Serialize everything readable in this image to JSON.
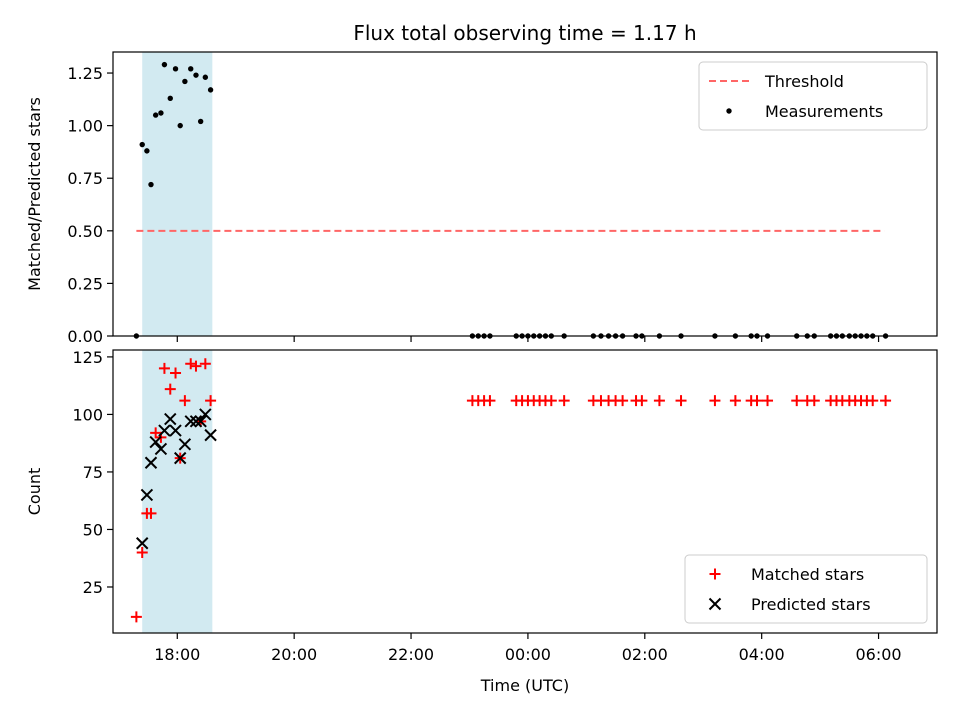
{
  "figure": {
    "title": "Flux total observing time = 1.17 h",
    "xlabel": "Time (UTC)"
  },
  "colors": {
    "shade": "#add8e6",
    "threshold": "#ff6666",
    "measurement": "#000000",
    "matched": "#ff0000",
    "predicted": "#000000",
    "axes": "#000000"
  },
  "chart_data": [
    {
      "type": "scatter",
      "title": "Flux total observing time = 1.17 h",
      "xlabel": "",
      "ylabel": "Matched/Predicted stars",
      "x_unit": "hours since 00:00 UTC (negative = previous evening)",
      "xlim": [
        -7.1,
        7.0
      ],
      "ylim": [
        0.0,
        1.35
      ],
      "x_ticks": [
        -6,
        -4,
        -2,
        0,
        2,
        4,
        6
      ],
      "x_tick_labels": [
        "18:00",
        "20:00",
        "22:00",
        "00:00",
        "02:00",
        "04:00",
        "06:00"
      ],
      "y_ticks": [
        0.0,
        0.25,
        0.5,
        0.75,
        1.0,
        1.25
      ],
      "y_tick_labels": [
        "0.00",
        "0.25",
        "0.50",
        "0.75",
        "1.00",
        "1.25"
      ],
      "shaded_x_range": [
        -6.6,
        -5.4
      ],
      "legend": {
        "position": "top-right"
      },
      "threshold": {
        "name": "Threshold",
        "x": [
          -6.7,
          6.1
        ],
        "y": 0.5,
        "style": "dashed"
      },
      "series": [
        {
          "name": "Measurements",
          "marker": "dot",
          "points": [
            [
              -6.7,
              0.0
            ],
            [
              -6.6,
              0.91
            ],
            [
              -6.52,
              0.88
            ],
            [
              -6.45,
              0.72
            ],
            [
              -6.37,
              1.05
            ],
            [
              -6.28,
              1.06
            ],
            [
              -6.22,
              1.29
            ],
            [
              -6.12,
              1.13
            ],
            [
              -6.03,
              1.27
            ],
            [
              -5.95,
              1.0
            ],
            [
              -5.87,
              1.21
            ],
            [
              -5.77,
              1.27
            ],
            [
              -5.68,
              1.24
            ],
            [
              -5.6,
              1.02
            ],
            [
              -5.52,
              1.23
            ],
            [
              -5.43,
              1.17
            ],
            [
              -0.95,
              0.0
            ],
            [
              -0.85,
              0.0
            ],
            [
              -0.75,
              0.0
            ],
            [
              -0.65,
              0.0
            ],
            [
              -0.2,
              0.0
            ],
            [
              -0.1,
              0.0
            ],
            [
              0.0,
              0.0
            ],
            [
              0.1,
              0.0
            ],
            [
              0.2,
              0.0
            ],
            [
              0.3,
              0.0
            ],
            [
              0.4,
              0.0
            ],
            [
              0.62,
              0.0
            ],
            [
              1.12,
              0.0
            ],
            [
              1.25,
              0.0
            ],
            [
              1.38,
              0.0
            ],
            [
              1.5,
              0.0
            ],
            [
              1.62,
              0.0
            ],
            [
              1.85,
              0.0
            ],
            [
              1.95,
              0.0
            ],
            [
              2.25,
              0.0
            ],
            [
              2.62,
              0.0
            ],
            [
              3.2,
              0.0
            ],
            [
              3.55,
              0.0
            ],
            [
              3.82,
              0.0
            ],
            [
              3.92,
              0.0
            ],
            [
              4.1,
              0.0
            ],
            [
              4.6,
              0.0
            ],
            [
              4.78,
              0.0
            ],
            [
              4.9,
              0.0
            ],
            [
              5.18,
              0.0
            ],
            [
              5.28,
              0.0
            ],
            [
              5.38,
              0.0
            ],
            [
              5.5,
              0.0
            ],
            [
              5.6,
              0.0
            ],
            [
              5.7,
              0.0
            ],
            [
              5.8,
              0.0
            ],
            [
              5.9,
              0.0
            ],
            [
              6.12,
              0.0
            ]
          ]
        }
      ]
    },
    {
      "type": "scatter",
      "title": "",
      "xlabel": "Time (UTC)",
      "ylabel": "Count",
      "x_unit": "hours since 00:00 UTC (negative = previous evening)",
      "xlim": [
        -7.1,
        7.0
      ],
      "ylim": [
        5,
        128
      ],
      "x_ticks": [
        -6,
        -4,
        -2,
        0,
        2,
        4,
        6
      ],
      "x_tick_labels": [
        "18:00",
        "20:00",
        "22:00",
        "00:00",
        "02:00",
        "04:00",
        "06:00"
      ],
      "y_ticks": [
        25,
        50,
        75,
        100,
        125
      ],
      "y_tick_labels": [
        "25",
        "50",
        "75",
        "100",
        "125"
      ],
      "shaded_x_range": [
        -6.6,
        -5.4
      ],
      "legend": {
        "position": "bottom-right"
      },
      "series": [
        {
          "name": "Matched stars",
          "marker": "plus",
          "points": [
            [
              -6.7,
              12
            ],
            [
              -6.6,
              40
            ],
            [
              -6.52,
              57
            ],
            [
              -6.45,
              57
            ],
            [
              -6.37,
              92
            ],
            [
              -6.28,
              90
            ],
            [
              -6.22,
              120
            ],
            [
              -6.12,
              111
            ],
            [
              -6.03,
              118
            ],
            [
              -5.95,
              81
            ],
            [
              -5.87,
              106
            ],
            [
              -5.77,
              122
            ],
            [
              -5.68,
              121
            ],
            [
              -5.6,
              97
            ],
            [
              -5.52,
              122
            ],
            [
              -5.43,
              106
            ],
            [
              -0.95,
              106
            ],
            [
              -0.85,
              106
            ],
            [
              -0.75,
              106
            ],
            [
              -0.65,
              106
            ],
            [
              -0.2,
              106
            ],
            [
              -0.1,
              106
            ],
            [
              0.0,
              106
            ],
            [
              0.1,
              106
            ],
            [
              0.2,
              106
            ],
            [
              0.3,
              106
            ],
            [
              0.4,
              106
            ],
            [
              0.62,
              106
            ],
            [
              1.12,
              106
            ],
            [
              1.25,
              106
            ],
            [
              1.38,
              106
            ],
            [
              1.5,
              106
            ],
            [
              1.62,
              106
            ],
            [
              1.85,
              106
            ],
            [
              1.95,
              106
            ],
            [
              2.25,
              106
            ],
            [
              2.62,
              106
            ],
            [
              3.2,
              106
            ],
            [
              3.55,
              106
            ],
            [
              3.82,
              106
            ],
            [
              3.92,
              106
            ],
            [
              4.1,
              106
            ],
            [
              4.6,
              106
            ],
            [
              4.78,
              106
            ],
            [
              4.9,
              106
            ],
            [
              5.18,
              106
            ],
            [
              5.28,
              106
            ],
            [
              5.38,
              106
            ],
            [
              5.5,
              106
            ],
            [
              5.6,
              106
            ],
            [
              5.7,
              106
            ],
            [
              5.8,
              106
            ],
            [
              5.9,
              106
            ],
            [
              6.12,
              106
            ]
          ]
        },
        {
          "name": "Predicted stars",
          "marker": "x",
          "points": [
            [
              -6.6,
              44
            ],
            [
              -6.52,
              65
            ],
            [
              -6.45,
              79
            ],
            [
              -6.37,
              88
            ],
            [
              -6.28,
              85
            ],
            [
              -6.22,
              93
            ],
            [
              -6.12,
              98
            ],
            [
              -6.03,
              93
            ],
            [
              -5.95,
              81
            ],
            [
              -5.87,
              87
            ],
            [
              -5.77,
              97
            ],
            [
              -5.68,
              97
            ],
            [
              -5.6,
              97
            ],
            [
              -5.52,
              100
            ],
            [
              -5.43,
              91
            ]
          ]
        }
      ]
    }
  ]
}
